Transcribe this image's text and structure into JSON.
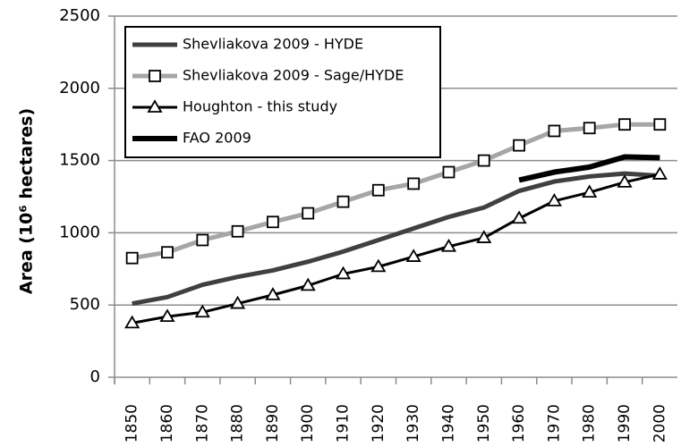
{
  "chart_data": {
    "type": "line",
    "y_label": "Area (10⁶ hectares)",
    "categories": [
      "1850",
      "1860",
      "1870",
      "1880",
      "1890",
      "1900",
      "1910",
      "1920",
      "1930",
      "1940",
      "1950",
      "1960",
      "1970",
      "1980",
      "1990",
      "2000"
    ],
    "series": [
      {
        "name": "Shevliakova 2009 - HYDE",
        "color": "#404040",
        "marker": "none",
        "values": [
          510,
          555,
          640,
          695,
          740,
          800,
          870,
          950,
          1030,
          1110,
          1175,
          1290,
          1355,
          1390,
          1410,
          1395
        ]
      },
      {
        "name": "Shevliakova 2009 - Sage/HYDE",
        "color": "#a6a6a6",
        "marker": "square",
        "values": [
          825,
          865,
          950,
          1010,
          1075,
          1135,
          1215,
          1295,
          1340,
          1420,
          1500,
          1605,
          1705,
          1725,
          1750,
          1750
        ]
      },
      {
        "name": "Houghton - this study",
        "color": "#000000",
        "marker": "triangle",
        "values": [
          375,
          420,
          450,
          510,
          570,
          635,
          715,
          765,
          835,
          905,
          965,
          1100,
          1220,
          1280,
          1350,
          1405
        ]
      },
      {
        "name": "FAO 2009",
        "color": "#000000",
        "marker": "none",
        "values": [
          null,
          null,
          null,
          null,
          null,
          null,
          null,
          null,
          null,
          null,
          null,
          1365,
          1420,
          1455,
          1525,
          1520
        ]
      }
    ],
    "ylim": [
      0,
      2500
    ],
    "yticks": [
      0,
      500,
      1000,
      1500,
      2000,
      2500
    ],
    "grid": true,
    "legend": "top-left"
  }
}
